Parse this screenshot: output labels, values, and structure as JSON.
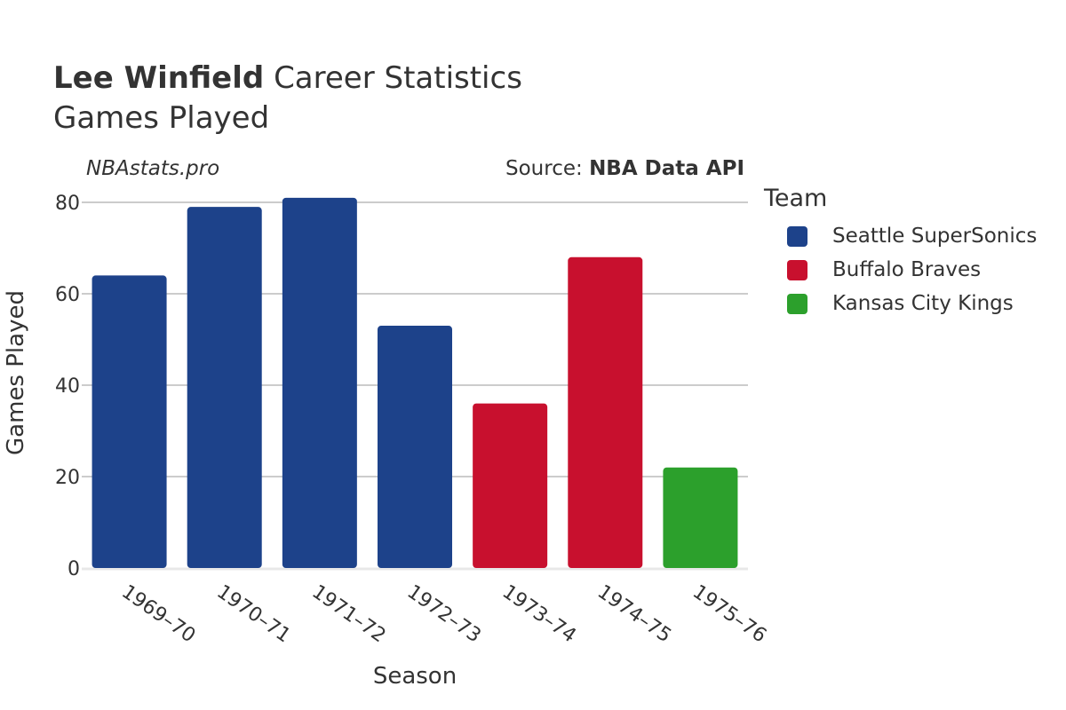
{
  "title": {
    "player": "Lee Winfield",
    "rest": "Career Statistics",
    "subtitle": "Games Played"
  },
  "credits": {
    "site": "NBAstats.pro",
    "source_prefix": "Source: ",
    "source_name": "NBA Data API"
  },
  "legend": {
    "title": "Team",
    "items": [
      {
        "label": "Seattle SuperSonics",
        "color": "#1d428a"
      },
      {
        "label": "Buffalo Braves",
        "color": "#c8102e"
      },
      {
        "label": "Kansas City Kings",
        "color": "#2ca02c"
      }
    ]
  },
  "chart_data": {
    "type": "bar",
    "xlabel": "Season",
    "ylabel": "Games Played",
    "ylim": [
      0,
      83
    ],
    "yticks": [
      0,
      20,
      40,
      60,
      80
    ],
    "grid": true,
    "legend_position": "right",
    "categories": [
      "1969–70",
      "1970–71",
      "1971–72",
      "1972–73",
      "1973–74",
      "1974–75",
      "1975–76"
    ],
    "values": [
      64,
      79,
      81,
      53,
      36,
      68,
      22
    ],
    "teams": [
      "Seattle SuperSonics",
      "Seattle SuperSonics",
      "Seattle SuperSonics",
      "Seattle SuperSonics",
      "Buffalo Braves",
      "Buffalo Braves",
      "Kansas City Kings"
    ]
  }
}
